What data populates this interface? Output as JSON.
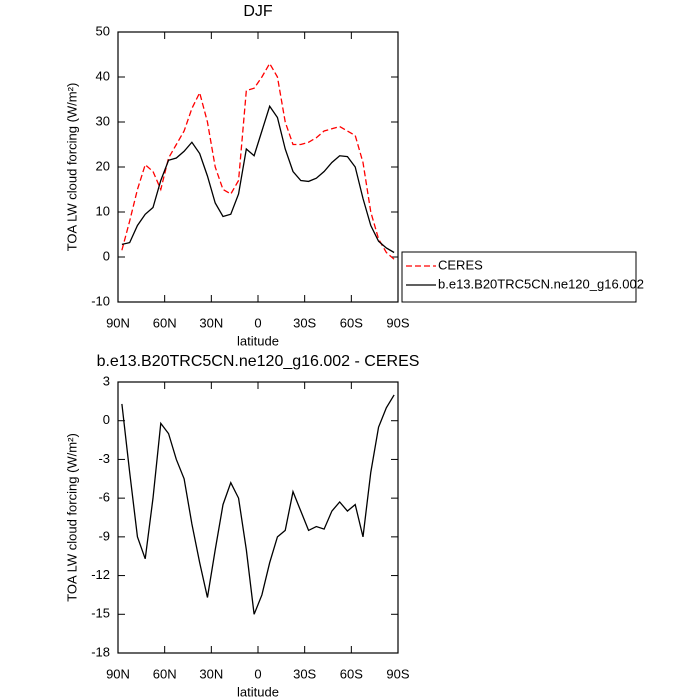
{
  "chart_data": [
    {
      "type": "line",
      "title": "DJF",
      "xlabel": "latitude",
      "ylabel": "TOA LW cloud forcing (W/m²)",
      "x": [
        87.5,
        82.5,
        77.5,
        72.5,
        67.5,
        62.5,
        57.5,
        52.5,
        47.5,
        42.5,
        37.5,
        32.5,
        27.5,
        22.5,
        17.5,
        12.5,
        7.5,
        2.5,
        -2.5,
        -7.5,
        -12.5,
        -17.5,
        -22.5,
        -27.5,
        -32.5,
        -37.5,
        -42.5,
        -47.5,
        -52.5,
        -57.5,
        -62.5,
        -67.5,
        -72.5,
        -77.5,
        -82.5,
        -87.5
      ],
      "series": [
        {
          "name": "CERES",
          "color": "#ff0000",
          "line_style": "dashed",
          "values": [
            1.5,
            8,
            15,
            20.5,
            19,
            15,
            22,
            25,
            28,
            33,
            36.5,
            30,
            20,
            15,
            14,
            17,
            37,
            37.5,
            40,
            43,
            40,
            30,
            25,
            25,
            25.5,
            26.5,
            28,
            28.5,
            29,
            28,
            27,
            21,
            10,
            4,
            1,
            -0.5
          ]
        },
        {
          "name": "b.e13.B20TRC5CN.ne120_g16.002",
          "color": "#000000",
          "line_style": "solid",
          "values": [
            2.8,
            3.2,
            7,
            9.5,
            11,
            17,
            21.5,
            22,
            23.5,
            25.5,
            23,
            18,
            12,
            9,
            9.5,
            14,
            24,
            22.5,
            28,
            33.5,
            31,
            24,
            19,
            17,
            16.8,
            17.5,
            19,
            21,
            22.5,
            22.3,
            20,
            13,
            7,
            3.5,
            2,
            1
          ]
        }
      ],
      "xlim": [
        90,
        -90
      ],
      "xticks": [
        {
          "value": 90,
          "label": "90N"
        },
        {
          "value": 60,
          "label": "60N"
        },
        {
          "value": 30,
          "label": "30N"
        },
        0,
        {
          "value": -30,
          "label": "30S"
        },
        {
          "value": -60,
          "label": "60S"
        },
        {
          "value": -90,
          "label": "90S"
        }
      ],
      "ylim": [
        -10,
        50
      ],
      "yticks": [
        -10,
        0,
        10,
        20,
        30,
        40,
        50
      ],
      "legend": "outside-right"
    },
    {
      "type": "line",
      "title": "b.e13.B20TRC5CN.ne120_g16.002 - CERES",
      "xlabel": "latitude",
      "ylabel": "TOA LW cloud forcing (W/m²)",
      "x": [
        87.5,
        82.5,
        77.5,
        72.5,
        67.5,
        62.5,
        57.5,
        52.5,
        47.5,
        42.5,
        37.5,
        32.5,
        27.5,
        22.5,
        17.5,
        12.5,
        7.5,
        2.5,
        -2.5,
        -7.5,
        -12.5,
        -17.5,
        -22.5,
        -27.5,
        -32.5,
        -37.5,
        -42.5,
        -47.5,
        -52.5,
        -57.5,
        -62.5,
        -67.5,
        -72.5,
        -77.5,
        -82.5,
        -87.5
      ],
      "series": [
        {
          "color": "#000000",
          "line_style": "solid",
          "values": [
            1.3,
            -4,
            -9,
            -10.7,
            -6,
            -0.2,
            -1,
            -3,
            -4.5,
            -8,
            -11,
            -13.7,
            -10,
            -6.5,
            -4.8,
            -6,
            -10,
            -15,
            -13.5,
            -11,
            -9,
            -8.5,
            -5.5,
            -7,
            -8.5,
            -8.2,
            -8.4,
            -7,
            -6.3,
            -7,
            -6.5,
            -9,
            -4,
            -0.5,
            1,
            2
          ]
        }
      ],
      "xlim": [
        90,
        -90
      ],
      "xticks": [
        {
          "value": 90,
          "label": "90N"
        },
        {
          "value": 60,
          "label": "60N"
        },
        {
          "value": 30,
          "label": "30N"
        },
        0,
        {
          "value": -30,
          "label": "30S"
        },
        {
          "value": -60,
          "label": "60S"
        },
        {
          "value": -90,
          "label": "90S"
        }
      ],
      "ylim": [
        -18,
        3
      ],
      "yticks": [
        -18,
        -15,
        -12,
        -9,
        -6,
        -3,
        0,
        3
      ]
    }
  ]
}
